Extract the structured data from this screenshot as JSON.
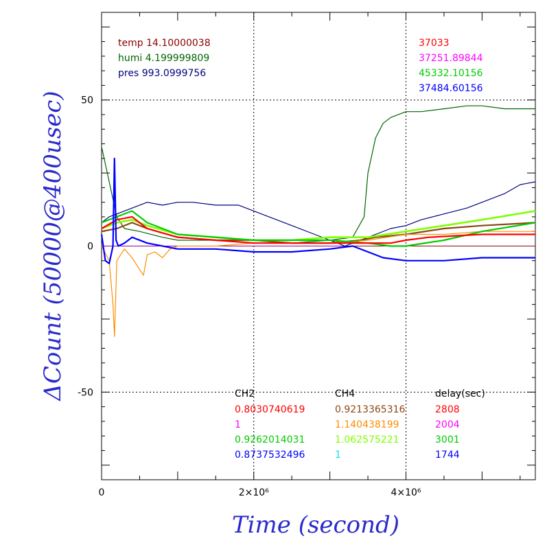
{
  "chart_data": {
    "type": "line",
    "xlabel": "Time (second)",
    "ylabel": "ΔCount (50000@400usec)",
    "xlim": [
      0,
      5700000
    ],
    "ylim": [
      -80,
      80
    ],
    "x_ticks": [
      {
        "value": 0,
        "label": "0"
      },
      {
        "value": 2000000,
        "label": "2×10⁶"
      },
      {
        "value": 4000000,
        "label": "4×10⁶"
      }
    ],
    "y_ticks": [
      {
        "value": -50,
        "label": "-50"
      },
      {
        "value": 0,
        "label": "0"
      },
      {
        "value": 50,
        "label": "50"
      }
    ],
    "grid": "dotted at labeled ticks",
    "env_annotations": [
      {
        "text": "temp 14.10000038",
        "color": "#8b0000"
      },
      {
        "text": "humi 4.199999809",
        "color": "#006400"
      },
      {
        "text": "pres 993.0999756",
        "color": "#00007f"
      }
    ],
    "corner_annotations": [
      {
        "text": "37033",
        "color": "#ff0000"
      },
      {
        "text": "37251.89844",
        "color": "#ff00ff"
      },
      {
        "text": "45332.10156",
        "color": "#00cc00"
      },
      {
        "text": "37484.60156",
        "color": "#0000ff"
      }
    ],
    "table": {
      "headers": [
        "CH2",
        "CH4",
        "delay(sec)"
      ],
      "rows": [
        {
          "cells": [
            "0.8030740619",
            "0.9213365316",
            "2808"
          ],
          "colors": [
            "#ff0000",
            "#8b4513",
            "#ff0000"
          ]
        },
        {
          "cells": [
            "1",
            "1.140438199",
            "2004"
          ],
          "colors": [
            "#ff00ff",
            "#ff8c00",
            "#ff00ff"
          ]
        },
        {
          "cells": [
            "0.9262014031",
            "1.062575221",
            "3001"
          ],
          "colors": [
            "#00cc00",
            "#7fff00",
            "#00cc00"
          ]
        },
        {
          "cells": [
            "0.8737532496",
            "1",
            "1744"
          ],
          "colors": [
            "#0000ff",
            "#00e5ee",
            "#0000ff"
          ]
        }
      ]
    },
    "series": [
      {
        "color": "#006400",
        "width": 1.2,
        "x": [
          0,
          100000,
          200000,
          300000,
          500000,
          800000,
          1000000,
          1500000,
          2000000,
          2500000,
          3000000,
          3300000,
          3450000,
          3500000,
          3600000,
          3700000,
          3800000,
          4000000,
          4200000,
          4500000,
          4800000,
          5000000,
          5300000,
          5700000
        ],
        "y": [
          34,
          22,
          10,
          6,
          5,
          3,
          2,
          2,
          1,
          1,
          2,
          3,
          10,
          25,
          37,
          42,
          44,
          46,
          46,
          47,
          48,
          48,
          47,
          47
        ]
      },
      {
        "color": "#00007f",
        "width": 1.2,
        "x": [
          0,
          100000,
          200000,
          400000,
          600000,
          800000,
          1000000,
          1200000,
          1500000,
          1800000,
          2000000,
          2200000,
          2500000,
          2800000,
          3000000,
          3200000,
          3400000,
          3600000,
          3800000,
          4000000,
          4200000,
          4500000,
          4800000,
          5000000,
          5300000,
          5500000,
          5700000
        ],
        "y": [
          8,
          10,
          11,
          13,
          15,
          14,
          15,
          15,
          14,
          14,
          12,
          10,
          7,
          4,
          2,
          0,
          2,
          4,
          6,
          7,
          9,
          11,
          13,
          15,
          18,
          21,
          22
        ]
      },
      {
        "color": "#8b4513",
        "width": 2.2,
        "x": [
          0,
          200000,
          400000,
          600000,
          1000000,
          1500000,
          2000000,
          2500000,
          3000000,
          3400000,
          3600000,
          4000000,
          4500000,
          5000000,
          5700000
        ],
        "y": [
          5,
          6,
          8,
          6,
          3,
          2,
          2,
          1,
          1,
          2,
          3,
          4,
          6,
          7,
          8
        ]
      },
      {
        "color": "#ff8c00",
        "width": 1.2,
        "x": [
          0,
          100000,
          150000,
          170000,
          200000,
          250000,
          300000,
          400000,
          500000,
          550000,
          600000,
          700000,
          800000,
          900000,
          1000000,
          1500000,
          2000000,
          3000000,
          3500000,
          4000000,
          4500000,
          5000000,
          5700000
        ],
        "y": [
          0,
          -5,
          -20,
          -31,
          -5,
          -3,
          -1,
          -4,
          -8,
          -10,
          -3,
          -2,
          -4,
          -1,
          0,
          0,
          1,
          1,
          2,
          4,
          4,
          5,
          5
        ]
      },
      {
        "color": "#7fff00",
        "width": 2.6,
        "x": [
          0,
          200000,
          400000,
          600000,
          1000000,
          1500000,
          2000000,
          2500000,
          3000000,
          3500000,
          4000000,
          4500000,
          5000000,
          5700000
        ],
        "y": [
          6,
          8,
          9,
          7,
          4,
          3,
          2,
          2,
          3,
          3,
          5,
          7,
          9,
          12
        ]
      },
      {
        "color": "#00cc00",
        "width": 2.2,
        "x": [
          0,
          200000,
          400000,
          600000,
          1000000,
          1500000,
          2000000,
          2500000,
          3000000,
          3500000,
          3800000,
          4000000,
          4500000,
          5000000,
          5700000
        ],
        "y": [
          8,
          10,
          12,
          8,
          4,
          3,
          2,
          2,
          2,
          1,
          0,
          0,
          2,
          5,
          8
        ]
      },
      {
        "color": "#ff0000",
        "width": 2.2,
        "x": [
          0,
          200000,
          400000,
          600000,
          1000000,
          1500000,
          2000000,
          2500000,
          3000000,
          3500000,
          3800000,
          4000000,
          4300000,
          5000000,
          5700000
        ],
        "y": [
          6,
          9,
          10,
          6,
          3,
          2,
          1,
          1,
          1,
          1,
          1,
          2,
          3,
          4,
          4
        ]
      },
      {
        "color": "#0000ff",
        "width": 2.2,
        "x": [
          0,
          50000,
          100000,
          150000,
          170000,
          190000,
          220000,
          300000,
          400000,
          600000,
          1000000,
          1500000,
          2000000,
          2500000,
          3000000,
          3300000,
          3500000,
          3700000,
          4000000,
          4500000,
          5000000,
          5700000
        ],
        "y": [
          4,
          -5,
          -6,
          0,
          30,
          2,
          0,
          1,
          3,
          1,
          -1,
          -1,
          -2,
          -2,
          -1,
          0,
          -2,
          -4,
          -5,
          -5,
          -4,
          -4
        ]
      }
    ],
    "reference_lines": [
      {
        "color": "#8b008b",
        "y": 0
      },
      {
        "color": "#8b0000",
        "x": [
          3300000,
          4000000,
          5700000
        ],
        "y": [
          0,
          0,
          0
        ]
      }
    ]
  }
}
